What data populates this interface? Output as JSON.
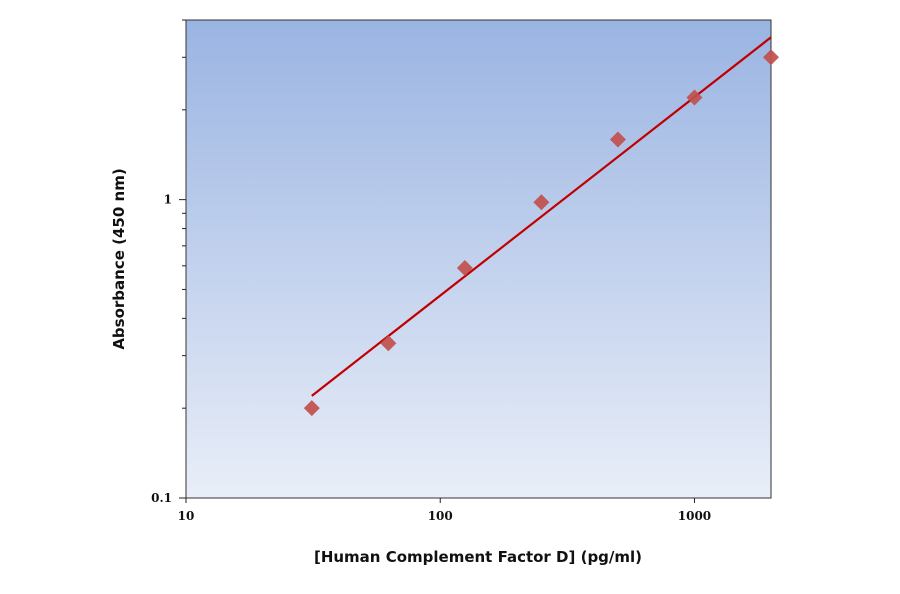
{
  "chart_data": {
    "type": "scatter",
    "title": "",
    "xlabel": "[Human Complement Factor D] (pg/ml)",
    "ylabel": "Absorbance (450 nm)",
    "xscale": "log",
    "yscale": "log",
    "xlim": [
      10,
      2000
    ],
    "ylim": [
      0.1,
      4
    ],
    "xticks": [
      10,
      100,
      1000
    ],
    "xtick_labels": [
      "10",
      "100",
      "1000"
    ],
    "yticks": [
      0.1,
      1
    ],
    "ytick_labels": [
      "0.1",
      "1"
    ],
    "grid": false,
    "legend": "none",
    "series": [
      {
        "marker": "diamond",
        "color": "#c0504d",
        "x": [
          31.25,
          62.5,
          125,
          250,
          500,
          1000,
          2000
        ],
        "y": [
          0.2,
          0.33,
          0.59,
          0.98,
          1.59,
          2.2,
          3.0
        ]
      }
    ],
    "fit_line": {
      "type": "power",
      "color": "#c00000",
      "x": [
        31.25,
        2000
      ],
      "y": [
        0.22,
        3.5
      ]
    },
    "background_gradient": [
      "#9ab4e2",
      "#e9eef8"
    ]
  }
}
